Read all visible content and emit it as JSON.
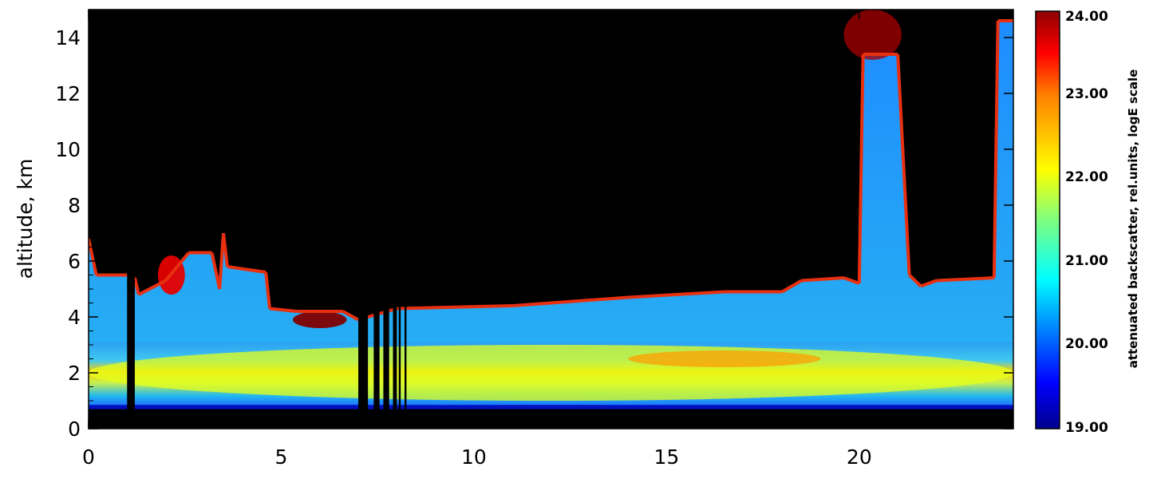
{
  "chart_data": {
    "type": "heatmap",
    "title": "",
    "xlabel": "",
    "ylabel": "altitude, km",
    "xlim": [
      0,
      24
    ],
    "ylim": [
      0,
      15
    ],
    "x_ticks": [
      0,
      5,
      10,
      15,
      20
    ],
    "y_ticks": [
      0,
      2,
      4,
      6,
      8,
      10,
      12,
      14
    ],
    "colorbar": {
      "label": "attenuated backscatter, rel.units, logE scale",
      "range": [
        19.0,
        24.0
      ],
      "ticks": [
        "19.00",
        "20.00",
        "21.00",
        "22.00",
        "23.00",
        "24.00"
      ],
      "colormap": "jet"
    },
    "cloud_top_profile_km": [
      [
        0.0,
        6.8
      ],
      [
        0.2,
        5.5
      ],
      [
        1.0,
        5.5
      ],
      [
        1.2,
        5.4
      ],
      [
        1.3,
        4.8
      ],
      [
        2.0,
        5.3
      ],
      [
        2.6,
        6.3
      ],
      [
        3.2,
        6.3
      ],
      [
        3.4,
        5.0
      ],
      [
        3.5,
        7.0
      ],
      [
        3.6,
        5.8
      ],
      [
        4.6,
        5.6
      ],
      [
        4.7,
        4.3
      ],
      [
        5.4,
        4.2
      ],
      [
        6.6,
        4.2
      ],
      [
        7.0,
        3.9
      ],
      [
        8.0,
        4.3
      ],
      [
        11.0,
        4.4
      ],
      [
        14.0,
        4.7
      ],
      [
        16.5,
        4.9
      ],
      [
        18.0,
        4.9
      ],
      [
        18.5,
        5.3
      ],
      [
        19.6,
        5.4
      ],
      [
        20.0,
        5.2
      ],
      [
        20.1,
        13.4
      ],
      [
        21.0,
        13.4
      ],
      [
        21.3,
        5.5
      ],
      [
        21.6,
        5.1
      ],
      [
        22.0,
        5.3
      ],
      [
        23.5,
        5.4
      ],
      [
        23.6,
        14.6
      ],
      [
        24.0,
        14.6
      ]
    ],
    "layers": [
      {
        "layer": "boundary layer",
        "x_start": 0,
        "x_end": 24,
        "base_km": 1.0,
        "top_km": 3.0,
        "value": 22.0
      },
      {
        "layer": "aerosol maximum",
        "x_start": 14,
        "x_end": 19,
        "base_km": 2.2,
        "top_km": 2.8,
        "value": 22.6
      },
      {
        "layer": "cloud",
        "x_start": 5.3,
        "x_end": 6.7,
        "base_km": 3.6,
        "top_km": 4.2,
        "value": 24.0
      },
      {
        "layer": "cloud",
        "x_start": 1.8,
        "x_end": 2.5,
        "base_km": 4.8,
        "top_km": 6.2,
        "value": 23.5
      },
      {
        "layer": "cirrus",
        "x_start": 19.6,
        "x_end": 21.1,
        "base_km": 13.2,
        "top_km": 15.0,
        "value": 23.8
      }
    ],
    "gap_columns_h": [
      [
        1.0,
        1.2
      ],
      [
        7.0,
        7.25
      ],
      [
        7.4,
        7.55
      ],
      [
        7.65,
        7.8
      ],
      [
        7.9,
        8.0
      ],
      [
        8.05,
        8.1
      ],
      [
        8.2,
        8.25
      ]
    ]
  }
}
